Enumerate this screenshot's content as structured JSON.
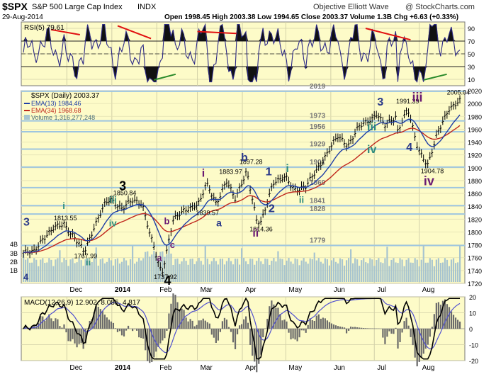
{
  "header": {
    "symbol": "$SPX",
    "name": "S&P 500 Large Cap Index",
    "exchange": "INDX",
    "watermark": "Objective Elliott Wave",
    "credit": "@ StockCharts.com",
    "date": "29-Aug-2014",
    "quote_line": "Open 1998.45   High 2003.38   Low 1994.65   Close 2003.37   Volume 1.3B   Chg +6.63 (+0.33%)"
  },
  "colors": {
    "panel_bg": "#fdfbc8",
    "volume": "#a7c4cf",
    "ema13": "#1f3fa6",
    "ema34": "#c0271d",
    "fib_line": "#9ec6e0",
    "rsi_line": "#2d2a86",
    "macd_line": "#000000",
    "signal_line": "#5050d0",
    "hist": "#6b6b6b",
    "wave_navy": "#2b3a8a",
    "wave_purple": "#6a1a73",
    "wave_teal": "#2a8a7c",
    "trend_red": "#e01010",
    "trend_green": "#2a8a2a"
  },
  "rsi_panel": {
    "label": "RSI(5) 79.61",
    "levels": [
      "90",
      "70",
      "50",
      "30",
      "10"
    ],
    "overbought": 70,
    "oversold": 30
  },
  "price_panel": {
    "legend": {
      "title": "$SPX (Daily) 2003.37",
      "ema13": "EMA(13) 1984.46",
      "ema34": "EMA(34) 1968.68",
      "volume": "Volume 1,316,277,248"
    },
    "yticks": [
      "2020",
      "2000",
      "1980",
      "1960",
      "1940",
      "1920",
      "1900",
      "1880",
      "1860",
      "1840",
      "1820",
      "1800",
      "1780",
      "1760",
      "1740",
      "1720"
    ],
    "volume_ticks": [
      "4B",
      "3B",
      "2B",
      "1B"
    ],
    "fib_levels": [
      "2019",
      "1973",
      "1956",
      "1929",
      "1901",
      "1869",
      "1841",
      "1828",
      "1779"
    ],
    "price_labels": [
      {
        "text": "1813.55",
        "price": 1813.55,
        "month": "Nov"
      },
      {
        "text": "1767.99",
        "price": 1767.99,
        "month": "Dec"
      },
      {
        "text": "1850.84",
        "price": 1850.84,
        "month": "Jan"
      },
      {
        "text": "1737.92",
        "price": 1737.92,
        "month": "Feb"
      },
      {
        "text": "1839.57",
        "price": 1839.57,
        "month": "Mar"
      },
      {
        "text": "1883.97",
        "price": 1883.97,
        "month": "Apr"
      },
      {
        "text": "1897.28",
        "price": 1897.28,
        "month": "Apr"
      },
      {
        "text": "1814.36",
        "price": 1814.36,
        "month": "Apr"
      },
      {
        "text": "1991.39",
        "price": 1991.39,
        "month": "Jul"
      },
      {
        "text": "1904.78",
        "price": 1904.78,
        "month": "Aug"
      },
      {
        "text": "2005.04",
        "price": 2005.04,
        "month": "Aug"
      }
    ],
    "wave_labels": [
      "3",
      "4",
      "i",
      "ii",
      "iii",
      "iv",
      "3",
      "4",
      "a",
      "b",
      "c",
      "i",
      "a",
      "b",
      "1",
      "2",
      "ii",
      "i",
      "ii",
      "iii",
      "iv",
      "3",
      "4",
      "iii",
      "iv",
      "1",
      "2"
    ]
  },
  "macd_panel": {
    "label": "MACD(12,26,9) 12.902, 8.085, 4.817",
    "yticks": [
      "20",
      "10",
      "0",
      "-10",
      "-20"
    ]
  },
  "x_axis": {
    "top": [
      "Dec",
      "2014",
      "Feb",
      "Mar",
      "Apr",
      "May",
      "Jun",
      "Jul",
      "Aug"
    ],
    "bottom": [
      "Dec",
      "2014",
      "Feb",
      "Mar",
      "Apr",
      "May",
      "Jun",
      "Jul",
      "Aug"
    ]
  },
  "chart_data": {
    "type": "line",
    "title": "$SPX S&P 500 Large Cap Index INDX",
    "subtitle": "29-Aug-2014",
    "x_unit": "trading date",
    "price_range": [
      1720,
      2020
    ],
    "ohlc_last": {
      "open": 1998.45,
      "high": 2003.38,
      "low": 1994.65,
      "close": 2003.37,
      "volume": "1.3B",
      "change": "+6.63 (+0.33%)"
    },
    "price_path": [
      {
        "date": "2013-11-08",
        "close": 1768
      },
      {
        "date": "2013-11-14",
        "close": 1790
      },
      {
        "date": "2013-11-22",
        "close": 1805
      },
      {
        "date": "2013-11-29",
        "close": 1813.55
      },
      {
        "date": "2013-12-06",
        "close": 1792
      },
      {
        "date": "2013-12-13",
        "close": 1768
      },
      {
        "date": "2013-12-20",
        "close": 1810
      },
      {
        "date": "2013-12-27",
        "close": 1842
      },
      {
        "date": "2013-12-31",
        "close": 1850.84
      },
      {
        "date": "2014-01-08",
        "close": 1838
      },
      {
        "date": "2014-01-15",
        "close": 1848
      },
      {
        "date": "2014-01-22",
        "close": 1845
      },
      {
        "date": "2014-01-28",
        "close": 1792
      },
      {
        "date": "2014-02-03",
        "close": 1742
      },
      {
        "date": "2014-02-05",
        "close": 1737.92
      },
      {
        "date": "2014-02-12",
        "close": 1820
      },
      {
        "date": "2014-02-20",
        "close": 1832
      },
      {
        "date": "2014-03-03",
        "close": 1848
      },
      {
        "date": "2014-03-07",
        "close": 1875
      },
      {
        "date": "2014-03-14",
        "close": 1845
      },
      {
        "date": "2014-03-21",
        "close": 1880
      },
      {
        "date": "2014-03-27",
        "close": 1850
      },
      {
        "date": "2014-04-04",
        "close": 1897.28
      },
      {
        "date": "2014-04-11",
        "close": 1815
      },
      {
        "date": "2014-04-14",
        "close": 1814.36
      },
      {
        "date": "2014-04-22",
        "close": 1878
      },
      {
        "date": "2014-05-01",
        "close": 1884
      },
      {
        "date": "2014-05-07",
        "close": 1867
      },
      {
        "date": "2014-05-15",
        "close": 1870
      },
      {
        "date": "2014-05-23",
        "close": 1900
      },
      {
        "date": "2014-06-06",
        "close": 1949
      },
      {
        "date": "2014-06-13",
        "close": 1936
      },
      {
        "date": "2014-06-20",
        "close": 1962
      },
      {
        "date": "2014-07-03",
        "close": 1985
      },
      {
        "date": "2014-07-08",
        "close": 1964
      },
      {
        "date": "2014-07-16",
        "close": 1981
      },
      {
        "date": "2014-07-17",
        "close": 1958
      },
      {
        "date": "2014-07-24",
        "close": 1991.39
      },
      {
        "date": "2014-07-31",
        "close": 1931
      },
      {
        "date": "2014-08-07",
        "close": 1904.78
      },
      {
        "date": "2014-08-14",
        "close": 1955
      },
      {
        "date": "2014-08-21",
        "close": 1992
      },
      {
        "date": "2014-08-29",
        "close": 2003.37
      }
    ],
    "series": [
      {
        "name": "EMA(13)",
        "last": 1984.46
      },
      {
        "name": "EMA(34)",
        "last": 1968.68
      },
      {
        "name": "RSI(5)",
        "last": 79.61
      },
      {
        "name": "MACD(12,26,9)",
        "macd": 12.902,
        "signal": 8.085,
        "histogram": 4.817
      }
    ],
    "volume_last": 1316277248,
    "fib_levels": [
      2019,
      1973,
      1956,
      1929,
      1901,
      1869,
      1841,
      1828,
      1779
    ],
    "grid": true
  }
}
